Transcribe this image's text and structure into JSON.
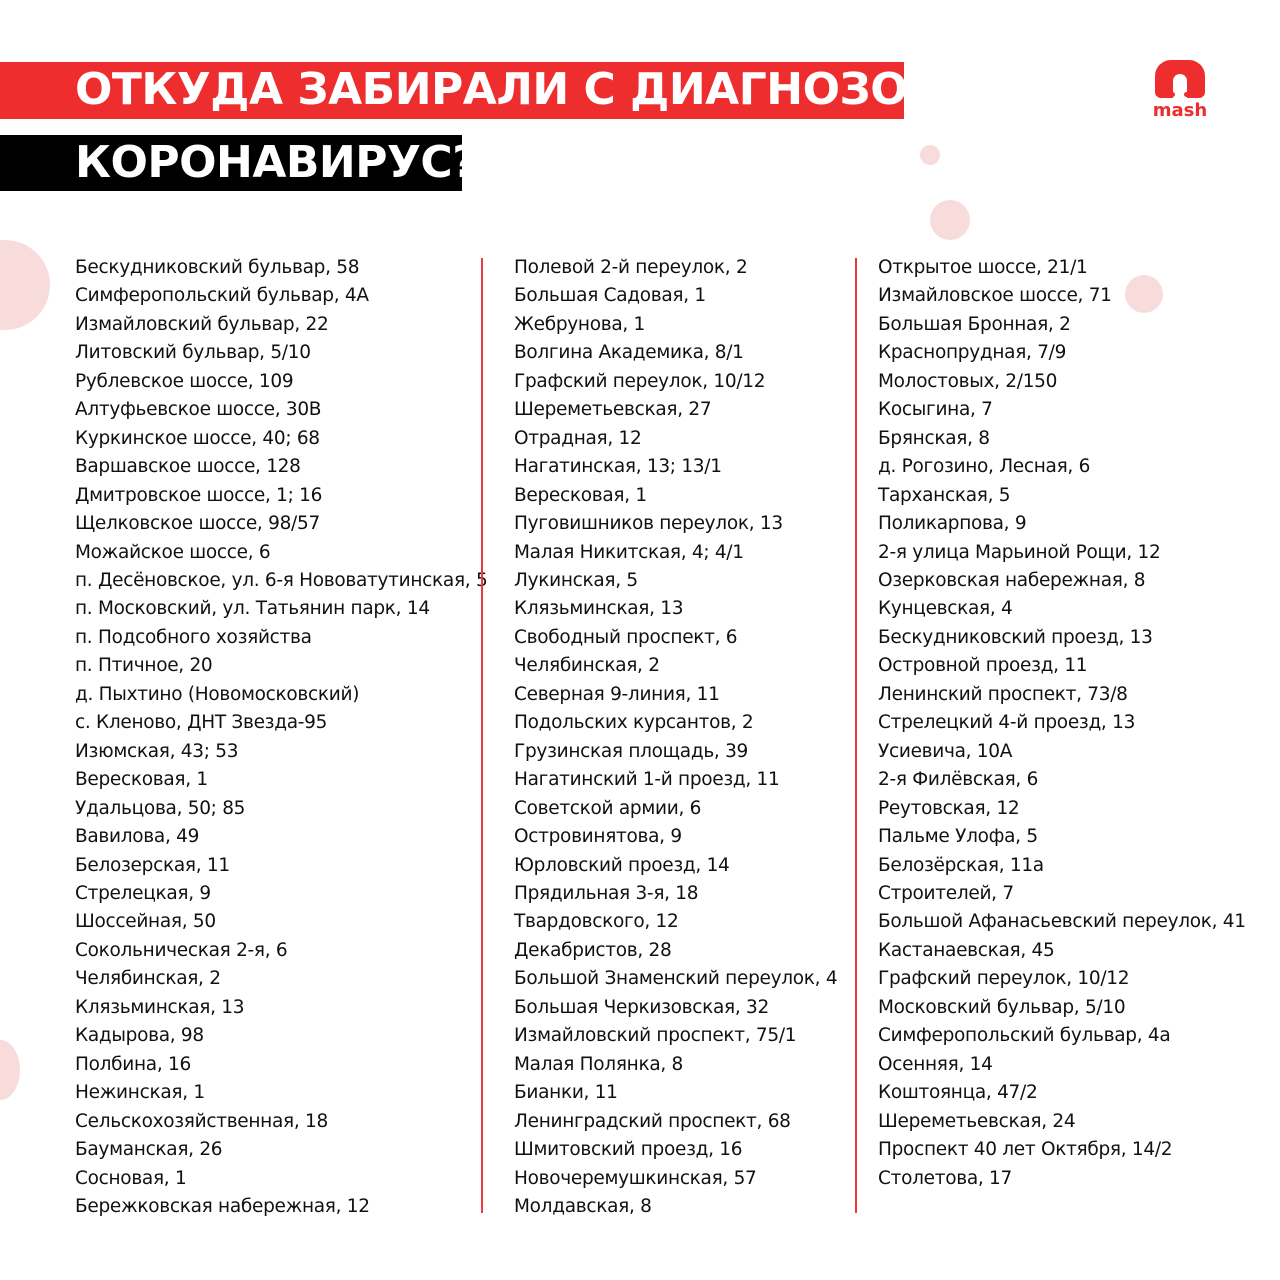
{
  "header": {
    "line1": "ОТКУДА ЗАБИРАЛИ С ДИАГНОЗОМ",
    "line2": "КОРОНАВИРУС?"
  },
  "logo": {
    "text": "mash"
  },
  "colors": {
    "accent": "#ee2e2e",
    "black": "#000000"
  },
  "columns": [
    [
      "Бескудниковский бульвар, 58",
      "Симферопольский бульвар, 4А",
      "Измайловский бульвар, 22",
      "Литовский бульвар, 5/10",
      "Рублевское шоссе, 109",
      "Алтуфьевское шоссе, 30В",
      "Куркинское шоссе, 40; 68",
      "Варшавское шоссе, 128",
      "Дмитровское шоссе, 1; 16",
      "Щелковское шоссе, 98/57",
      "Можайское шоссе, 6",
      "п. Десёновское, ул. 6-я Нововатутинская, 5",
      "п. Московский, ул. Татьянин парк, 14",
      "п. Подсобного хозяйства",
      "п. Птичное, 20",
      "д. Пыхтино (Новомосковский)",
      "с. Кленово, ДНТ Звезда-95",
      "Изюмская, 43; 53",
      "Вересковая, 1",
      "Удальцова, 50; 85",
      "Вавилова, 49",
      "Белозерская, 11",
      "Стрелецкая, 9",
      "Шоссейная, 50",
      "Сокольническая 2-я, 6",
      "Челябинская, 2",
      "Клязьминская, 13",
      "Кадырова, 98",
      "Полбина, 16",
      "Нежинская, 1",
      "Сельскохозяйственная, 18",
      "Бауманская, 26",
      "Сосновая, 1",
      "Бережковская набережная, 12"
    ],
    [
      "Полевой 2-й переулок, 2",
      "Большая Садовая, 1",
      "Жебрунова, 1",
      "Волгина Академика, 8/1",
      "Графский переулок, 10/12",
      "Шереметьевская, 27",
      "Отрадная, 12",
      "Нагатинская, 13; 13/1",
      "Вересковая, 1",
      "Пуговишников переулок, 13",
      "Малая Никитская, 4; 4/1",
      "Лукинская, 5",
      "Клязьминская, 13",
      "Свободный проспект, 6",
      "Челябинская, 2",
      "Северная 9-линия, 11",
      "Подольских курсантов, 2",
      "Грузинская площадь, 39",
      "Нагатинский 1-й проезд, 11",
      "Советской армии, 6",
      "Островинятова, 9",
      "Юрловский проезд, 14",
      "Прядильная 3-я, 18",
      "Твардовского, 12",
      "Декабристов, 28",
      "Большой Знаменский переулок, 4",
      "Большая Черкизовская, 32",
      "Измайловский проспект, 75/1",
      "Малая Полянка, 8",
      "Бианки, 11",
      "Ленинградский проспект, 68",
      "Шмитовский проезд, 16",
      "Новочеремушкинская, 57",
      "Молдавская, 8"
    ],
    [
      "Открытое шоссе, 21/1",
      "Измайловское шоссе, 71",
      "Большая Бронная, 2",
      "Краснопрудная, 7/9",
      "Молостовых, 2/150",
      "Косыгина, 7",
      "Брянская, 8",
      "д. Рогозино, Лесная, 6",
      "Тарханская, 5",
      "Поликарпова, 9",
      "2-я улица Марьиной Рощи, 12",
      "Озерковская набережная, 8",
      "Кунцевская, 4",
      "Бескудниковский проезд, 13",
      "Островной проезд, 11",
      "Ленинский проспект, 73/8",
      "Стрелецкий 4-й проезд, 13",
      "Усиевича, 10А",
      "2-я Филёвская, 6",
      "Реутовская, 12",
      "Пальме Улофа, 5",
      "Белозёрская, 11а",
      "Строителей, 7",
      "Большой Афанасьевский переулок, 41",
      "Кастанаевская, 45",
      "Графский переулок, 10/12",
      "Московский бульвар, 5/10",
      "Симферопольский бульвар, 4а",
      "Осенняя, 14",
      "Коштоянца, 47/2",
      "Шереметьевская, 24",
      "Проспект 40 лет Октября, 14/2",
      "Столетова, 17"
    ]
  ]
}
